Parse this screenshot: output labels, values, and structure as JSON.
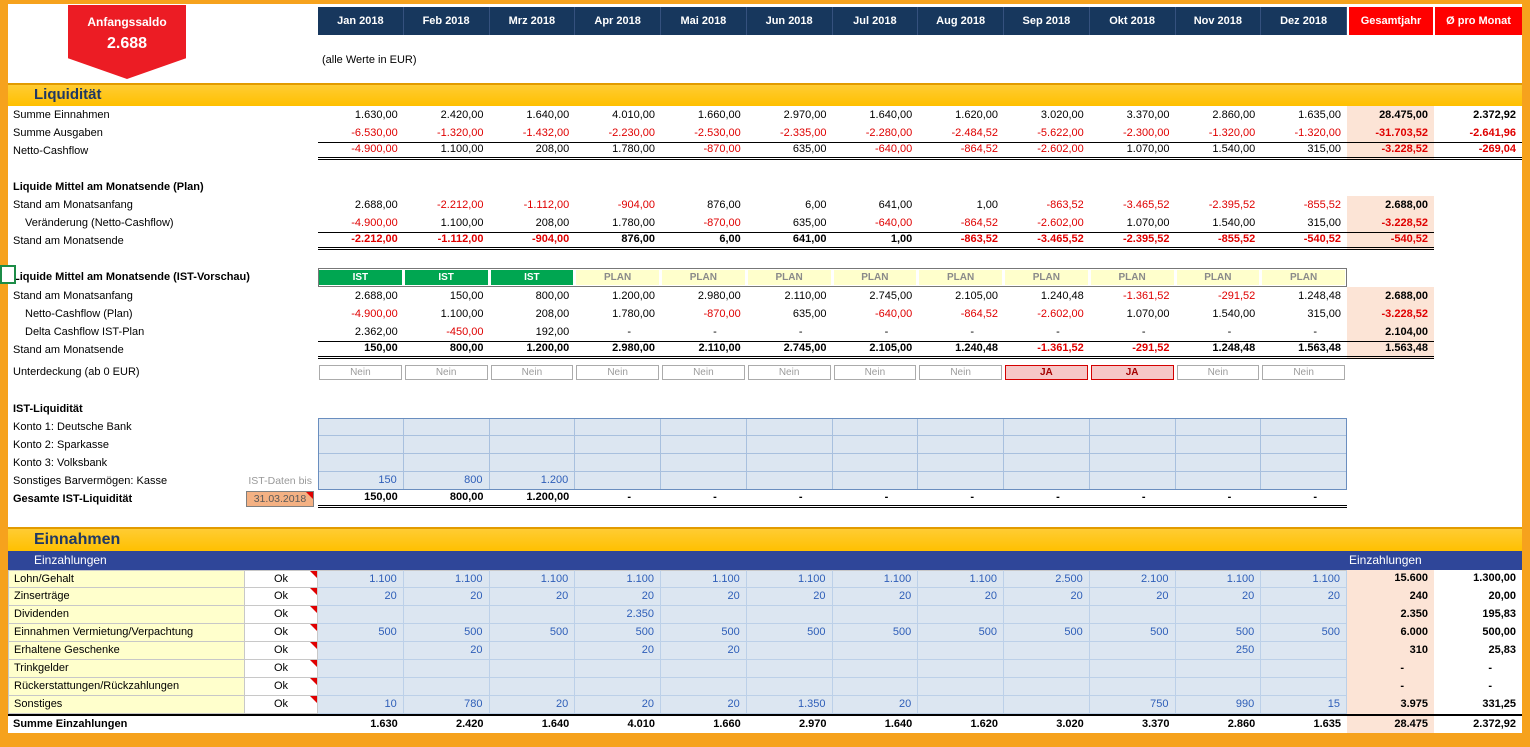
{
  "colors": {
    "orange": "#F6A21D",
    "navy": "#17375D",
    "red": "#FF0000",
    "badgered": "#EC1C24",
    "gold": "#FFC000",
    "bandtext": "#1F3864",
    "barblue": "#2F4699",
    "green": "#00A651",
    "planyellow": "#FFFFCC",
    "negred": "#DF0000",
    "inputblue": "#2E5EB8",
    "cellblue": "#DCE6F1",
    "peach": "#FCE4D6",
    "labyellow": "#FFFFCC",
    "datetan": "#F4B183"
  },
  "badge": {
    "label": "Anfangssaldo",
    "value": "2.688"
  },
  "header": {
    "months": [
      "Jan 2018",
      "Feb 2018",
      "Mrz 2018",
      "Apr 2018",
      "Mai 2018",
      "Jun 2018",
      "Jul 2018",
      "Aug 2018",
      "Sep 2018",
      "Okt 2018",
      "Nov 2018",
      "Dez 2018"
    ],
    "total_label": "Gesamtjahr",
    "avg_label": "Ø pro Monat"
  },
  "note": "(alle Werte in EUR)",
  "sections": {
    "liquiditaet": {
      "title": "Liquidität",
      "rows": [
        {
          "label": "Summe Einnahmen",
          "values": [
            "1.630,00",
            "2.420,00",
            "1.640,00",
            "4.010,00",
            "1.660,00",
            "2.970,00",
            "1.640,00",
            "1.620,00",
            "3.020,00",
            "3.370,00",
            "2.860,00",
            "1.635,00"
          ],
          "total": "28.475,00",
          "avg": "2.372,92"
        },
        {
          "label": "Summe Ausgaben",
          "values": [
            "-6.530,00",
            "-1.320,00",
            "-1.432,00",
            "-2.230,00",
            "-2.530,00",
            "-2.335,00",
            "-2.280,00",
            "-2.484,52",
            "-5.622,00",
            "-2.300,00",
            "-1.320,00",
            "-1.320,00"
          ],
          "total": "-31.703,52",
          "avg": "-2.641,96"
        },
        {
          "label": "Netto-Cashflow",
          "values": [
            "-4.900,00",
            "1.100,00",
            "208,00",
            "1.780,00",
            "-870,00",
            "635,00",
            "-640,00",
            "-864,52",
            "-2.602,00",
            "1.070,00",
            "1.540,00",
            "315,00"
          ],
          "total": "-3.228,52",
          "avg": "-269,04",
          "lined": true
        }
      ]
    },
    "plan": {
      "title": "Liquide Mittel am Monatsende (Plan)",
      "rows": [
        {
          "label": "Stand am Monatsanfang",
          "values": [
            "2.688,00",
            "-2.212,00",
            "-1.112,00",
            "-904,00",
            "876,00",
            "6,00",
            "641,00",
            "1,00",
            "-863,52",
            "-3.465,52",
            "-2.395,52",
            "-855,52"
          ],
          "total": "2.688,00"
        },
        {
          "label": "Veränderung (Netto-Cashflow)",
          "indent": true,
          "values": [
            "-4.900,00",
            "1.100,00",
            "208,00",
            "1.780,00",
            "-870,00",
            "635,00",
            "-640,00",
            "-864,52",
            "-2.602,00",
            "1.070,00",
            "1.540,00",
            "315,00"
          ],
          "total": "-3.228,52"
        },
        {
          "label": "Stand am Monatsende",
          "values": [
            "-2.212,00",
            "-1.112,00",
            "-904,00",
            "876,00",
            "6,00",
            "641,00",
            "1,00",
            "-863,52",
            "-3.465,52",
            "-2.395,52",
            "-855,52",
            "-540,52"
          ],
          "total": "-540,52",
          "lined": true,
          "emphasis": true
        }
      ]
    },
    "ist": {
      "title": "Liquide Mittel am Monatsende (IST-Vorschau)",
      "chips": [
        "IST",
        "IST",
        "IST",
        "PLAN",
        "PLAN",
        "PLAN",
        "PLAN",
        "PLAN",
        "PLAN",
        "PLAN",
        "PLAN",
        "PLAN"
      ],
      "rows": [
        {
          "label": "Stand am Monatsanfang",
          "values": [
            "2.688,00",
            "150,00",
            "800,00",
            "1.200,00",
            "2.980,00",
            "2.110,00",
            "2.745,00",
            "2.105,00",
            "1.240,48",
            "-1.361,52",
            "-291,52",
            "1.248,48"
          ],
          "total": "2.688,00"
        },
        {
          "label": "Netto-Cashflow (Plan)",
          "indent": true,
          "values": [
            "-4.900,00",
            "1.100,00",
            "208,00",
            "1.780,00",
            "-870,00",
            "635,00",
            "-640,00",
            "-864,52",
            "-2.602,00",
            "1.070,00",
            "1.540,00",
            "315,00"
          ],
          "total": "-3.228,52"
        },
        {
          "label": "Delta Cashflow IST-Plan",
          "indent": true,
          "values": [
            "2.362,00",
            "-450,00",
            "192,00",
            "-",
            "-",
            "-",
            "-",
            "-",
            "-",
            "-",
            "-",
            "-"
          ],
          "total": "2.104,00"
        },
        {
          "label": "Stand am Monatsende",
          "values": [
            "150,00",
            "800,00",
            "1.200,00",
            "2.980,00",
            "2.110,00",
            "2.745,00",
            "2.105,00",
            "1.240,48",
            "-1.361,52",
            "-291,52",
            "1.248,48",
            "1.563,48"
          ],
          "total": "1.563,48",
          "lined": true,
          "emphasis": true
        }
      ]
    },
    "unterdeckung": {
      "label": "Unterdeckung (ab 0 EUR)",
      "values": [
        "Nein",
        "Nein",
        "Nein",
        "Nein",
        "Nein",
        "Nein",
        "Nein",
        "Nein",
        "JA",
        "JA",
        "Nein",
        "Nein"
      ]
    },
    "ist_liquiditaet": {
      "title": "IST-Liquidität",
      "rows": [
        {
          "label": "Konto 1: Deutsche Bank",
          "values": [
            "",
            "",
            "",
            "",
            "",
            "",
            "",
            "",
            "",
            "",
            "",
            ""
          ]
        },
        {
          "label": "Konto 2: Sparkasse",
          "values": [
            "",
            "",
            "",
            "",
            "",
            "",
            "",
            "",
            "",
            "",
            "",
            ""
          ]
        },
        {
          "label": "Konto 3: Volksbank",
          "values": [
            "",
            "",
            "",
            "",
            "",
            "",
            "",
            "",
            "",
            "",
            "",
            ""
          ]
        },
        {
          "label": "Sonstiges Barvermögen: Kasse",
          "sublabel": "IST-Daten bis",
          "values": [
            "150",
            "800",
            "1.200",
            "",
            "",
            "",
            "",
            "",
            "",
            "",
            "",
            ""
          ]
        },
        {
          "label": "Gesamte IST-Liquidität",
          "date": "31.03.2018",
          "result": true,
          "values": [
            "150,00",
            "800,00",
            "1.200,00",
            "-",
            "-",
            "-",
            "-",
            "-",
            "-",
            "-",
            "-",
            "-"
          ]
        }
      ]
    },
    "einnahmen": {
      "title": "Einnahmen",
      "bar_left": "Einzahlungen",
      "bar_right": "Einzahlungen",
      "ok_label": "Ok",
      "rows": [
        {
          "label": "Lohn/Gehalt",
          "values": [
            "1.100",
            "1.100",
            "1.100",
            "1.100",
            "1.100",
            "1.100",
            "1.100",
            "1.100",
            "2.500",
            "2.100",
            "1.100",
            "1.100"
          ],
          "total": "15.600",
          "avg": "1.300,00"
        },
        {
          "label": "Zinserträge",
          "values": [
            "20",
            "20",
            "20",
            "20",
            "20",
            "20",
            "20",
            "20",
            "20",
            "20",
            "20",
            "20"
          ],
          "total": "240",
          "avg": "20,00"
        },
        {
          "label": "Dividenden",
          "values": [
            "",
            "",
            "",
            "2.350",
            "",
            "",
            "",
            "",
            "",
            "",
            "",
            ""
          ],
          "total": "2.350",
          "avg": "195,83"
        },
        {
          "label": "Einnahmen Vermietung/Verpachtung",
          "values": [
            "500",
            "500",
            "500",
            "500",
            "500",
            "500",
            "500",
            "500",
            "500",
            "500",
            "500",
            "500"
          ],
          "total": "6.000",
          "avg": "500,00"
        },
        {
          "label": "Erhaltene Geschenke",
          "values": [
            "",
            "20",
            "",
            "20",
            "20",
            "",
            "",
            "",
            "",
            "",
            "250",
            ""
          ],
          "total": "310",
          "avg": "25,83"
        },
        {
          "label": "Trinkgelder",
          "values": [
            "",
            "",
            "",
            "",
            "",
            "",
            "",
            "",
            "",
            "",
            "",
            ""
          ],
          "total": "-",
          "avg": "-"
        },
        {
          "label": "Rückerstattungen/Rückzahlungen",
          "values": [
            "",
            "",
            "",
            "",
            "",
            "",
            "",
            "",
            "",
            "",
            "",
            ""
          ],
          "total": "-",
          "avg": "-"
        },
        {
          "label": "Sonstiges",
          "values": [
            "10",
            "780",
            "20",
            "20",
            "20",
            "1.350",
            "20",
            "",
            "",
            "750",
            "990",
            "15"
          ],
          "total": "3.975",
          "avg": "331,25"
        }
      ],
      "summe": {
        "label": "Summe Einzahlungen",
        "values": [
          "1.630",
          "2.420",
          "1.640",
          "4.010",
          "1.660",
          "2.970",
          "1.640",
          "1.620",
          "3.020",
          "3.370",
          "2.860",
          "1.635"
        ],
        "total": "28.475",
        "avg": "2.372,92"
      }
    }
  }
}
